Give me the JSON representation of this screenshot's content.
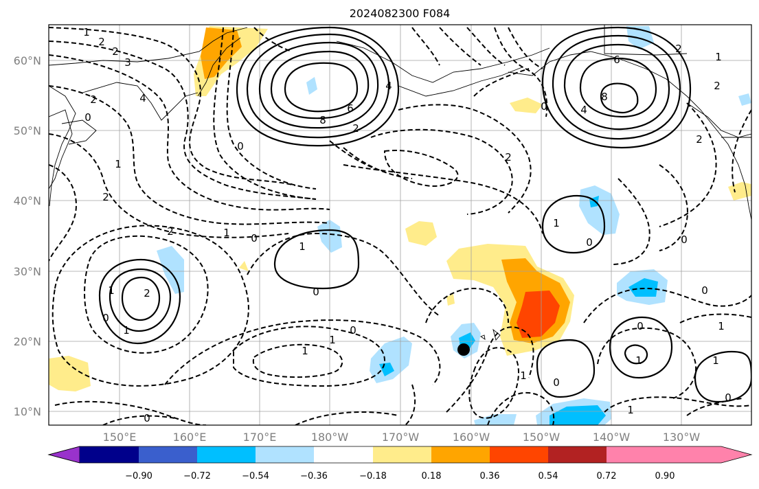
{
  "title": "2024082300 F084",
  "lat_labels": [
    "60°N",
    "50°N",
    "40°N",
    "30°N",
    "20°N",
    "10°N"
  ],
  "lon_labels": [
    "150°E",
    "160°E",
    "170°E",
    "180°W",
    "170°W",
    "160°W",
    "150°W",
    "140°W",
    "130°W"
  ],
  "colorbar": {
    "colors": [
      "#9932cc",
      "#00008b",
      "#3a5fcd",
      "#00bfff",
      "#b0e2ff",
      "#ffffff",
      "#ffec8b",
      "#ffa500",
      "#ff4500",
      "#b22222",
      "#ff82ab"
    ],
    "tick_labels": [
      "−0.90",
      "−0.72",
      "−0.54",
      "−0.36",
      "−0.18",
      "0.18",
      "0.36",
      "0.54",
      "0.72",
      "0.90"
    ]
  },
  "contour_labels": [
    "1",
    "2",
    "2",
    "3",
    "4",
    "2",
    "0",
    "6",
    "8",
    "4",
    "2",
    "6",
    "8",
    "4",
    "0",
    "2",
    "2",
    "1",
    "2",
    "2",
    "1",
    "0",
    "1",
    "0",
    "2",
    "2",
    "0",
    "1",
    "1",
    "0",
    "0",
    "1",
    "0",
    "2",
    "1",
    "0",
    "1",
    "1",
    "0",
    "1",
    "1",
    "0",
    "1",
    "0",
    "0",
    "1",
    "1",
    "0"
  ],
  "marker": "storm-position-marker"
}
